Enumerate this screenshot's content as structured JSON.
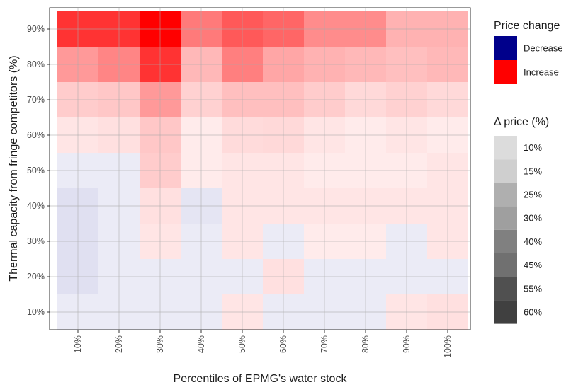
{
  "chart_data": {
    "type": "heatmap",
    "xlabel": "Percentiles of EPMG's water stock",
    "ylabel": "Thermal capacity from fringe competitors (%)",
    "x_categories": [
      "10%",
      "20%",
      "30%",
      "40%",
      "50%",
      "60%",
      "70%",
      "80%",
      "90%",
      "100%"
    ],
    "y_categories": [
      "10%",
      "20%",
      "30%",
      "40%",
      "50%",
      "60%",
      "70%",
      "80%",
      "90%"
    ],
    "grid": true,
    "legend_position": "right",
    "colors": {
      "decrease": "#00008B",
      "increase": "#FF0000"
    },
    "legend_color": {
      "title": "Price change",
      "entries": [
        {
          "label": "Decrease",
          "color": "#00008B"
        },
        {
          "label": "Increase",
          "color": "#FF0000"
        }
      ]
    },
    "legend_alpha": {
      "title": "Δ price (%)",
      "entries": [
        {
          "label": "10%",
          "value": 10
        },
        {
          "label": "15%",
          "value": 15
        },
        {
          "label": "25%",
          "value": 25
        },
        {
          "label": "30%",
          "value": 30
        },
        {
          "label": "40%",
          "value": 40
        },
        {
          "label": "45%",
          "value": 45
        },
        {
          "label": "55%",
          "value": 55
        },
        {
          "label": "60%",
          "value": 60
        }
      ]
    },
    "cells": [
      [
        {
          "d": -1,
          "v": 8
        },
        {
          "d": -1,
          "v": 8
        },
        {
          "d": -1,
          "v": 8
        },
        {
          "d": -1,
          "v": 8
        },
        {
          "d": 1,
          "v": 10
        },
        {
          "d": -1,
          "v": 8
        },
        {
          "d": -1,
          "v": 8
        },
        {
          "d": -1,
          "v": 8
        },
        {
          "d": 1,
          "v": 10
        },
        {
          "d": 1,
          "v": 12
        }
      ],
      [
        {
          "d": -1,
          "v": 12
        },
        {
          "d": -1,
          "v": 8
        },
        {
          "d": -1,
          "v": 8
        },
        {
          "d": -1,
          "v": 8
        },
        {
          "d": -1,
          "v": 8
        },
        {
          "d": 1,
          "v": 12
        },
        {
          "d": -1,
          "v": 8
        },
        {
          "d": -1,
          "v": 8
        },
        {
          "d": -1,
          "v": 8
        },
        {
          "d": -1,
          "v": 8
        }
      ],
      [
        {
          "d": -1,
          "v": 12
        },
        {
          "d": -1,
          "v": 8
        },
        {
          "d": 1,
          "v": 10
        },
        {
          "d": -1,
          "v": 8
        },
        {
          "d": 1,
          "v": 10
        },
        {
          "d": -1,
          "v": 8
        },
        {
          "d": 1,
          "v": 8
        },
        {
          "d": 1,
          "v": 8
        },
        {
          "d": -1,
          "v": 8
        },
        {
          "d": 1,
          "v": 10
        }
      ],
      [
        {
          "d": -1,
          "v": 12
        },
        {
          "d": -1,
          "v": 8
        },
        {
          "d": 1,
          "v": 12
        },
        {
          "d": -1,
          "v": 10
        },
        {
          "d": 1,
          "v": 10
        },
        {
          "d": 1,
          "v": 10
        },
        {
          "d": 1,
          "v": 10
        },
        {
          "d": 1,
          "v": 10
        },
        {
          "d": 1,
          "v": 10
        },
        {
          "d": 1,
          "v": 10
        }
      ],
      [
        {
          "d": -1,
          "v": 8
        },
        {
          "d": -1,
          "v": 8
        },
        {
          "d": 1,
          "v": 20
        },
        {
          "d": 1,
          "v": 8
        },
        {
          "d": 1,
          "v": 10
        },
        {
          "d": 1,
          "v": 10
        },
        {
          "d": 1,
          "v": 8
        },
        {
          "d": 1,
          "v": 8
        },
        {
          "d": 1,
          "v": 8
        },
        {
          "d": 1,
          "v": 10
        }
      ],
      [
        {
          "d": 1,
          "v": 10
        },
        {
          "d": 1,
          "v": 12
        },
        {
          "d": 1,
          "v": 22
        },
        {
          "d": 1,
          "v": 8
        },
        {
          "d": 1,
          "v": 14
        },
        {
          "d": 1,
          "v": 15
        },
        {
          "d": 1,
          "v": 10
        },
        {
          "d": 1,
          "v": 8
        },
        {
          "d": 1,
          "v": 10
        },
        {
          "d": 1,
          "v": 8
        }
      ],
      [
        {
          "d": 1,
          "v": 20
        },
        {
          "d": 1,
          "v": 22
        },
        {
          "d": 1,
          "v": 40
        },
        {
          "d": 1,
          "v": 18
        },
        {
          "d": 1,
          "v": 25
        },
        {
          "d": 1,
          "v": 25
        },
        {
          "d": 1,
          "v": 20
        },
        {
          "d": 1,
          "v": 15
        },
        {
          "d": 1,
          "v": 18
        },
        {
          "d": 1,
          "v": 15
        }
      ],
      [
        {
          "d": 1,
          "v": 40
        },
        {
          "d": 1,
          "v": 48
        },
        {
          "d": 1,
          "v": 80
        },
        {
          "d": 1,
          "v": 28
        },
        {
          "d": 1,
          "v": 50
        },
        {
          "d": 1,
          "v": 35
        },
        {
          "d": 1,
          "v": 30
        },
        {
          "d": 1,
          "v": 28
        },
        {
          "d": 1,
          "v": 25
        },
        {
          "d": 1,
          "v": 28
        }
      ],
      [
        {
          "d": 1,
          "v": 80
        },
        {
          "d": 1,
          "v": 80
        },
        {
          "d": 1,
          "v": 100
        },
        {
          "d": 1,
          "v": 52
        },
        {
          "d": 1,
          "v": 65
        },
        {
          "d": 1,
          "v": 60
        },
        {
          "d": 1,
          "v": 45
        },
        {
          "d": 1,
          "v": 45
        },
        {
          "d": 1,
          "v": 30
        },
        {
          "d": 1,
          "v": 30
        }
      ]
    ]
  }
}
